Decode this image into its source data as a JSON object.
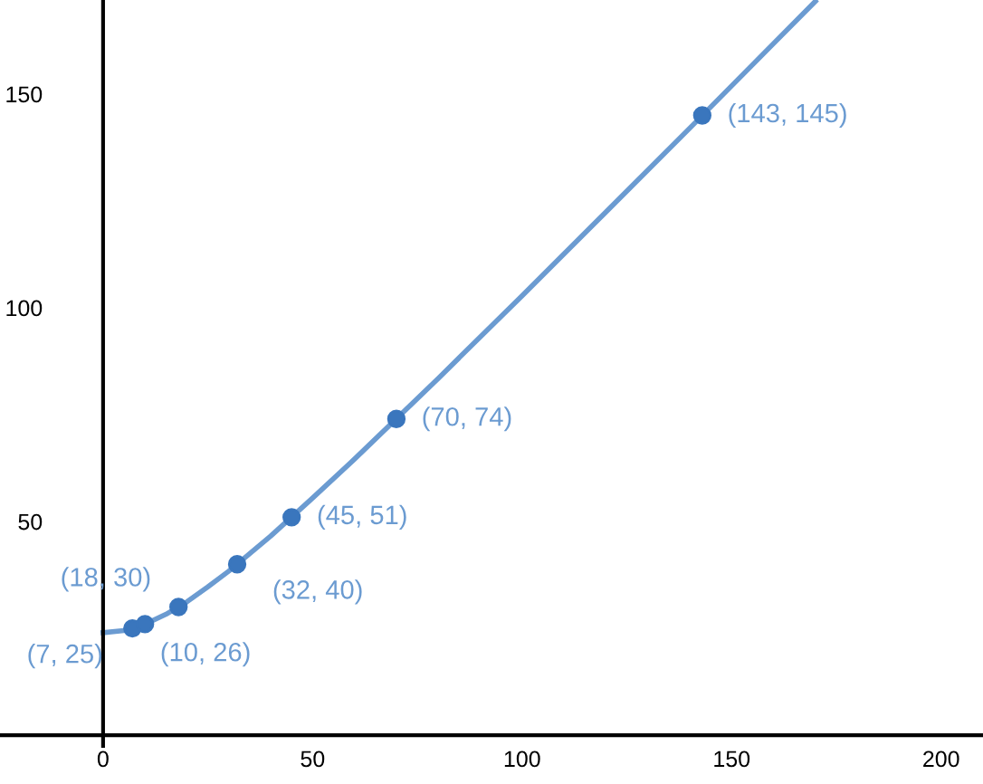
{
  "chart_data": {
    "type": "line",
    "xlim": [
      -24.6,
      210
    ],
    "ylim": [
      -11.4,
      172
    ],
    "xticks": [
      0,
      50,
      100,
      150,
      200
    ],
    "yticks": [
      50,
      100,
      150
    ],
    "legend": false,
    "series": [
      {
        "color": "#6b9bd1",
        "marker": "none",
        "x": [
          0,
          5,
          10,
          15,
          20,
          25,
          30,
          40,
          50,
          60,
          80,
          100,
          120,
          140,
          160,
          170
        ],
        "values": [
          24,
          24.5,
          26,
          28.3,
          31.2,
          34.7,
          38.4,
          46.6,
          55.5,
          64.6,
          83.5,
          102.8,
          122.4,
          142,
          161.8,
          171.7
        ]
      },
      {
        "type": "scatter",
        "color": "#3a76bd",
        "marker": "circle",
        "x": [
          7,
          10,
          18,
          32,
          45,
          70,
          143
        ],
        "values": [
          25,
          26,
          30,
          40,
          51,
          74,
          145
        ]
      }
    ],
    "annotations": [
      {
        "text": "(7, 25)",
        "x": 7,
        "y": 25
      },
      {
        "text": "(10, 26)",
        "x": 10,
        "y": 26
      },
      {
        "text": "(18, 30)",
        "x": 18,
        "y": 30
      },
      {
        "text": "(32, 40)",
        "x": 32,
        "y": 40
      },
      {
        "text": "(45, 51)",
        "x": 45,
        "y": 51
      },
      {
        "text": "(70, 74)",
        "x": 70,
        "y": 74
      },
      {
        "text": "(143, 145)",
        "x": 143,
        "y": 145
      }
    ]
  }
}
